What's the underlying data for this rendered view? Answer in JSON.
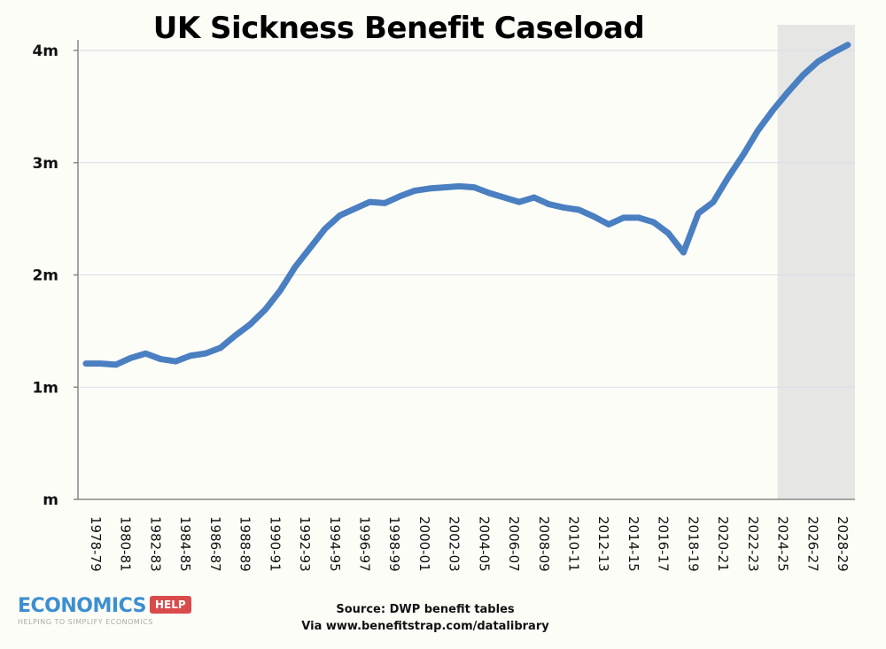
{
  "chart_data": {
    "type": "line",
    "title": "UK Sickness Benefit Caseload",
    "xlabel": "",
    "ylabel": "",
    "ylim": [
      0,
      4
    ],
    "yticks": [
      {
        "v": 0,
        "label": "m"
      },
      {
        "v": 1,
        "label": "1m"
      },
      {
        "v": 2,
        "label": "2m"
      },
      {
        "v": 3,
        "label": "3m"
      },
      {
        "v": 4,
        "label": "4m"
      }
    ],
    "grid": true,
    "forecast_shaded_from": "2024-25",
    "line_color": "#4a7fc1",
    "shade_color": "#e6e6e4",
    "categories": [
      "1978-79",
      "1979-80",
      "1980-81",
      "1981-82",
      "1982-83",
      "1983-84",
      "1984-85",
      "1985-86",
      "1986-87",
      "1987-88",
      "1988-89",
      "1989-90",
      "1990-91",
      "1991-92",
      "1992-93",
      "1993-94",
      "1994-95",
      "1995-96",
      "1996-97",
      "1997-98",
      "1998-99",
      "1999-00",
      "2000-01",
      "2001-02",
      "2002-03",
      "2003-04",
      "2004-05",
      "2005-06",
      "2006-07",
      "2007-08",
      "2008-09",
      "2009-10",
      "2010-11",
      "2011-12",
      "2012-13",
      "2013-14",
      "2014-15",
      "2015-16",
      "2016-17",
      "2017-18",
      "2018-19",
      "2019-20",
      "2020-21",
      "2021-22",
      "2022-23",
      "2023-24",
      "2024-25",
      "2025-26",
      "2026-27",
      "2027-28",
      "2028-29",
      "2029-30"
    ],
    "tick_labels": [
      "1978-79",
      "1980-81",
      "1982-83",
      "1984-85",
      "1986-87",
      "1988-89",
      "1990-91",
      "1992-93",
      "1994-95",
      "1996-97",
      "1998-99",
      "2000-01",
      "2002-03",
      "2004-05",
      "2006-07",
      "2008-09",
      "2010-11",
      "2012-13",
      "2014-15",
      "2016-17",
      "2018-19",
      "2020-21",
      "2022-23",
      "2024-25",
      "2026-27",
      "2028-29"
    ],
    "values": [
      1.21,
      1.21,
      1.2,
      1.26,
      1.3,
      1.25,
      1.23,
      1.28,
      1.3,
      1.35,
      1.46,
      1.56,
      1.69,
      1.86,
      2.07,
      2.24,
      2.41,
      2.53,
      2.59,
      2.65,
      2.64,
      2.7,
      2.75,
      2.77,
      2.78,
      2.79,
      2.78,
      2.73,
      2.69,
      2.65,
      2.69,
      2.63,
      2.6,
      2.58,
      2.52,
      2.45,
      2.51,
      2.51,
      2.47,
      2.37,
      2.2,
      2.55,
      2.65,
      2.87,
      3.07,
      3.29,
      3.47,
      3.63,
      3.78,
      3.9,
      3.98,
      4.05
    ]
  },
  "source": {
    "line1": "Source: DWP benefit tables",
    "line2": "Via www.benefitstrap.com/datalibrary"
  },
  "logo": {
    "main": "ECONOMICS",
    "tag": "HELP",
    "sub": "HELPING TO SIMPLIFY ECONOMICS"
  }
}
